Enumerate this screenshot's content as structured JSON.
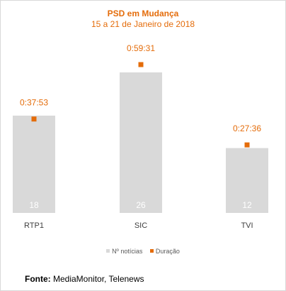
{
  "chart_data": {
    "type": "bar",
    "title": "PSD em Mudança",
    "subtitle": "15 a 21 de Janeiro de 2018",
    "categories": [
      "RTP1",
      "SIC",
      "TVI"
    ],
    "series": [
      {
        "name": "Nº notícias",
        "type": "bar",
        "values": [
          18,
          26,
          12
        ],
        "color": "#d9d9d9"
      },
      {
        "name": "Duração",
        "type": "marker",
        "values": [
          "0:37:53",
          "0:59:31",
          "0:27:36"
        ],
        "values_seconds": [
          2273,
          3571,
          1656
        ],
        "color": "#e46c0a"
      }
    ],
    "ylim_count": [
      0,
      26
    ],
    "ylim_seconds": [
      0,
      3571
    ],
    "legend_position": "bottom",
    "grid": false
  },
  "source": {
    "label": "Fonte:",
    "text": "MediaMonitor, Telenews"
  }
}
